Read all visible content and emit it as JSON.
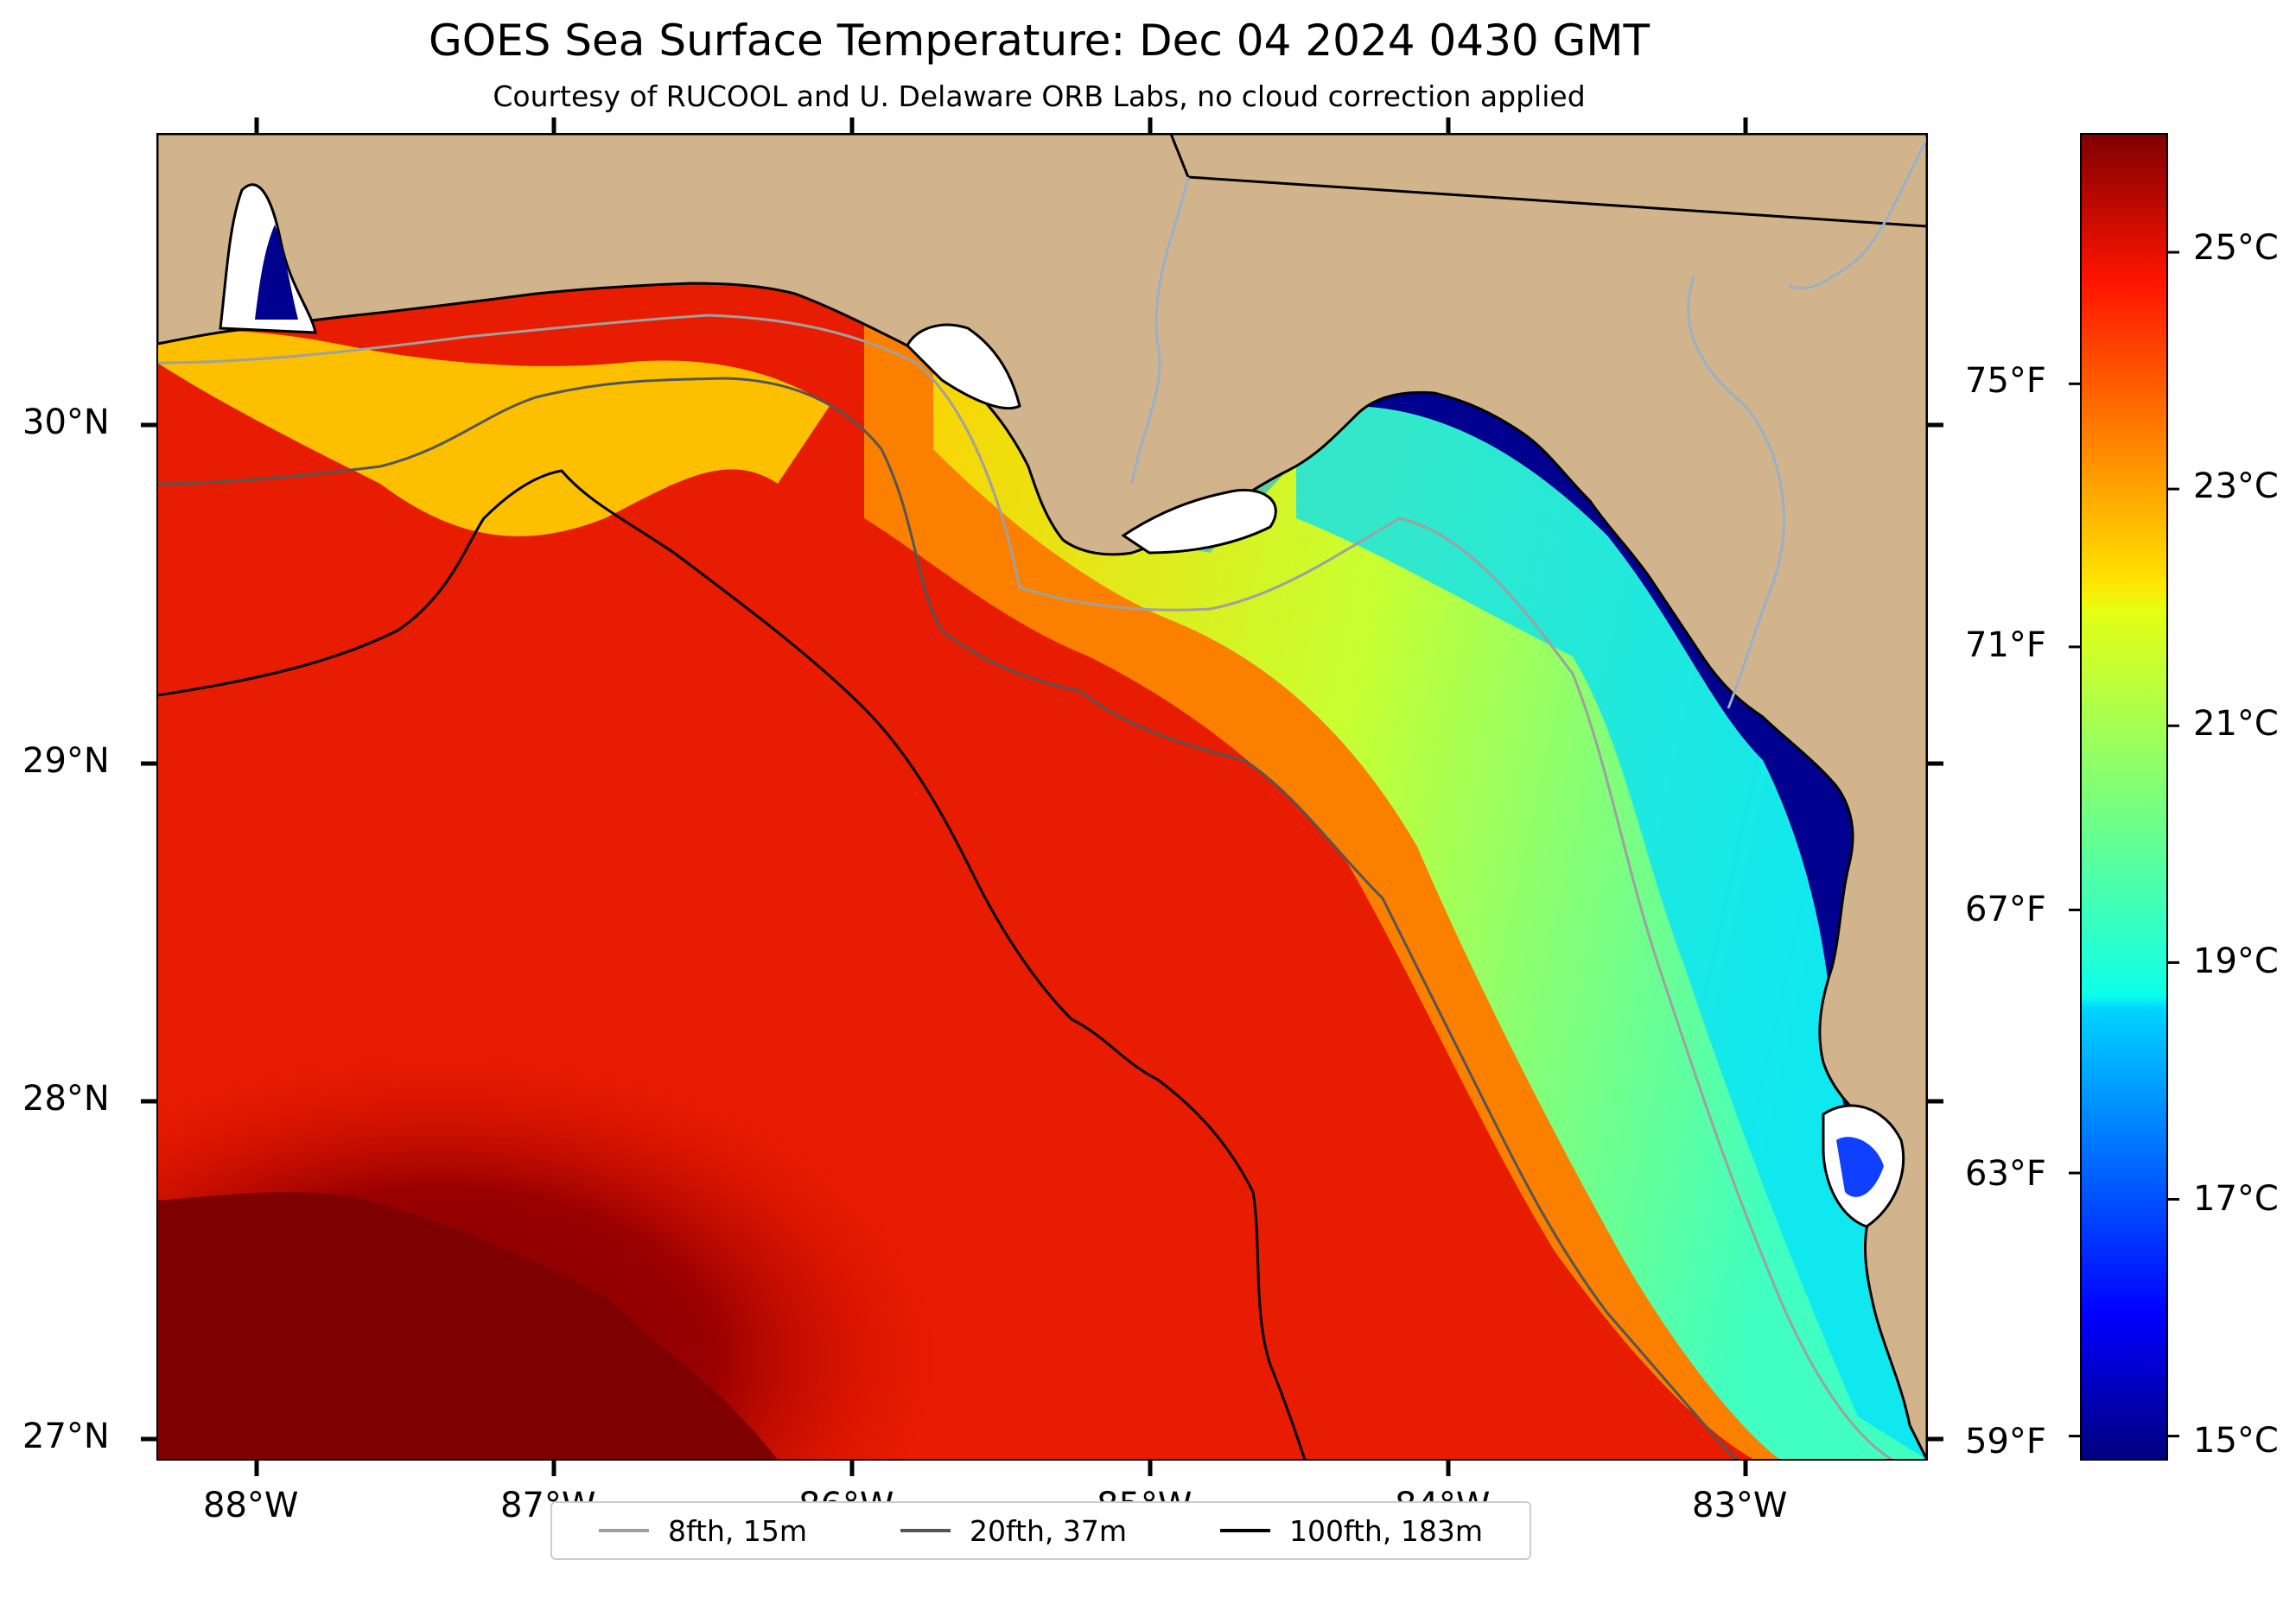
{
  "title": "GOES Sea Surface Temperature: Dec 04 2024 0430 GMT",
  "subtitle": "Courtesy of RUCOOL and U. Delaware ORB Labs, no cloud correction applied",
  "map": {
    "lon_range": [
      -88.33,
      -82.39
    ],
    "lat_range": [
      26.93,
      30.87
    ],
    "latitude_labels": [
      {
        "label": "30°N",
        "lat": 30
      },
      {
        "label": "29°N",
        "lat": 29
      },
      {
        "label": "28°N",
        "lat": 28
      },
      {
        "label": "27°N",
        "lat": 27
      }
    ],
    "longitude_labels": [
      {
        "label": "88°W",
        "lon": -88
      },
      {
        "label": "87°W",
        "lon": -87
      },
      {
        "label": "86°W",
        "lon": -86
      },
      {
        "label": "85°W",
        "lon": -85
      },
      {
        "label": "84°W",
        "lon": -84
      },
      {
        "label": "83°W",
        "lon": -83
      }
    ],
    "land_color": "#D2B48C",
    "no_data_color": "#ffffff"
  },
  "colorbar": {
    "colormap": "jet",
    "range_c": [
      14.8,
      26.0
    ],
    "celsius_ticks": [
      "25°C",
      "23°C",
      "21°C",
      "19°C",
      "17°C",
      "15°C"
    ],
    "celsius_values": [
      25,
      23,
      21,
      19,
      17,
      15
    ],
    "fahrenheit_ticks": [
      "75°F",
      "71°F",
      "67°F",
      "63°F",
      "59°F"
    ],
    "fahrenheit_values": [
      75,
      71,
      67,
      63,
      59
    ]
  },
  "legend": {
    "items": [
      {
        "label": "8fth, 15m",
        "color": "#a0a0a0"
      },
      {
        "label": "20fth, 37m",
        "color": "#555555"
      },
      {
        "label": "100fth, 183m",
        "color": "#000000"
      }
    ]
  }
}
